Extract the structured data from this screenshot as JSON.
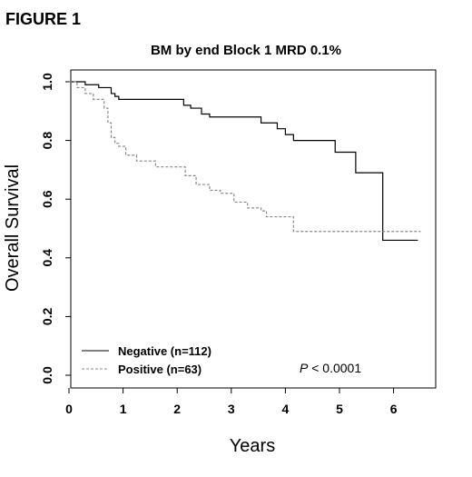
{
  "figure_label": "FIGURE 1",
  "chart_data": {
    "type": "line",
    "title": "BM by end Block 1 MRD 0.1%",
    "xlabel": "Years",
    "ylabel": "Overall Survival",
    "xlim": [
      0,
      6.5
    ],
    "ylim": [
      0,
      1.0
    ],
    "xticks": [
      0,
      1,
      2,
      3,
      4,
      5,
      6
    ],
    "xtick_labels": [
      "0",
      "1",
      "2",
      "3",
      "4",
      "5",
      "6"
    ],
    "yticks": [
      0.0,
      0.2,
      0.4,
      0.6,
      0.8,
      1.0
    ],
    "ytick_labels": [
      "0.0",
      "0.2",
      "0.4",
      "0.6",
      "0.8",
      "1.0"
    ],
    "grid": false,
    "legend_position": "bottom-left",
    "series": [
      {
        "name": "Negative (n=112)",
        "style": "solid",
        "color": "#000000",
        "x": [
          0,
          0.25,
          0.3,
          0.5,
          0.55,
          0.72,
          0.78,
          0.85,
          0.92,
          2.0,
          2.12,
          2.25,
          2.45,
          2.6,
          3.3,
          3.55,
          3.72,
          3.85,
          4.0,
          4.15,
          4.92,
          5.3,
          5.8,
          6.45
        ],
        "y": [
          1.0,
          1.0,
          0.99,
          0.99,
          0.98,
          0.98,
          0.96,
          0.95,
          0.94,
          0.94,
          0.92,
          0.91,
          0.89,
          0.88,
          0.88,
          0.86,
          0.86,
          0.84,
          0.82,
          0.8,
          0.76,
          0.69,
          0.46,
          0.46
        ]
      },
      {
        "name": "Positive (n=63)",
        "style": "dashed",
        "color": "#888888",
        "x": [
          0,
          0.1,
          0.15,
          0.3,
          0.45,
          0.65,
          0.72,
          0.78,
          0.85,
          0.92,
          1.05,
          1.25,
          1.6,
          2.15,
          2.35,
          2.6,
          2.8,
          3.05,
          3.3,
          3.55,
          3.65,
          4.15,
          6.5
        ],
        "y": [
          1.0,
          1.0,
          0.98,
          0.96,
          0.94,
          0.91,
          0.86,
          0.81,
          0.79,
          0.78,
          0.75,
          0.73,
          0.71,
          0.68,
          0.65,
          0.63,
          0.62,
          0.59,
          0.57,
          0.56,
          0.54,
          0.49,
          0.49
        ]
      }
    ],
    "annotations": [
      {
        "text_italic": "P",
        "text": " < 0.0001"
      }
    ]
  }
}
